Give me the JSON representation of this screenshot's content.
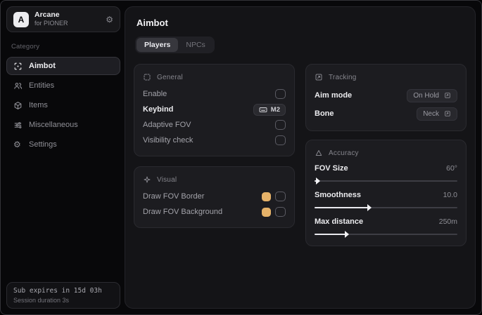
{
  "sidebar": {
    "brand": {
      "logo_letter": "A",
      "name": "Arcane",
      "subtitle": "for PIONER"
    },
    "category_label": "Category",
    "items": [
      {
        "label": "Aimbot",
        "active": true
      },
      {
        "label": "Entities",
        "active": false
      },
      {
        "label": "Items",
        "active": false
      },
      {
        "label": "Miscellaneous",
        "active": false
      },
      {
        "label": "Settings",
        "active": false
      }
    ],
    "footer": {
      "subscription": "Sub expires in 15d 03h",
      "session": "Session duration 3s"
    }
  },
  "main": {
    "title": "Aimbot",
    "tabs": [
      {
        "label": "Players",
        "active": true
      },
      {
        "label": "NPCs",
        "active": false
      }
    ],
    "general": {
      "title": "General",
      "rows": [
        {
          "label": "Enable",
          "control": "checkbox",
          "checked": false
        },
        {
          "label": "Keybind",
          "control": "keybind",
          "value": "M2"
        },
        {
          "label": "Adaptive FOV",
          "control": "checkbox",
          "checked": false
        },
        {
          "label": "Visibility check",
          "control": "checkbox",
          "checked": false
        }
      ]
    },
    "visual": {
      "title": "Visual",
      "rows": [
        {
          "label": "Draw FOV Border",
          "color": "#e5b269",
          "checked": false
        },
        {
          "label": "Draw FOV Background",
          "color": "#e5b269",
          "checked": false
        }
      ]
    },
    "tracking": {
      "title": "Tracking",
      "rows": [
        {
          "label": "Aim mode",
          "value": "On Hold"
        },
        {
          "label": "Bone",
          "value": "Neck"
        }
      ]
    },
    "accuracy": {
      "title": "Accuracy",
      "sliders": [
        {
          "label": "FOV Size",
          "value": "60°",
          "percent": 2
        },
        {
          "label": "Smoothness",
          "value": "10.0",
          "percent": 38
        },
        {
          "label": "Max distance",
          "value": "250m",
          "percent": 22
        }
      ]
    }
  }
}
